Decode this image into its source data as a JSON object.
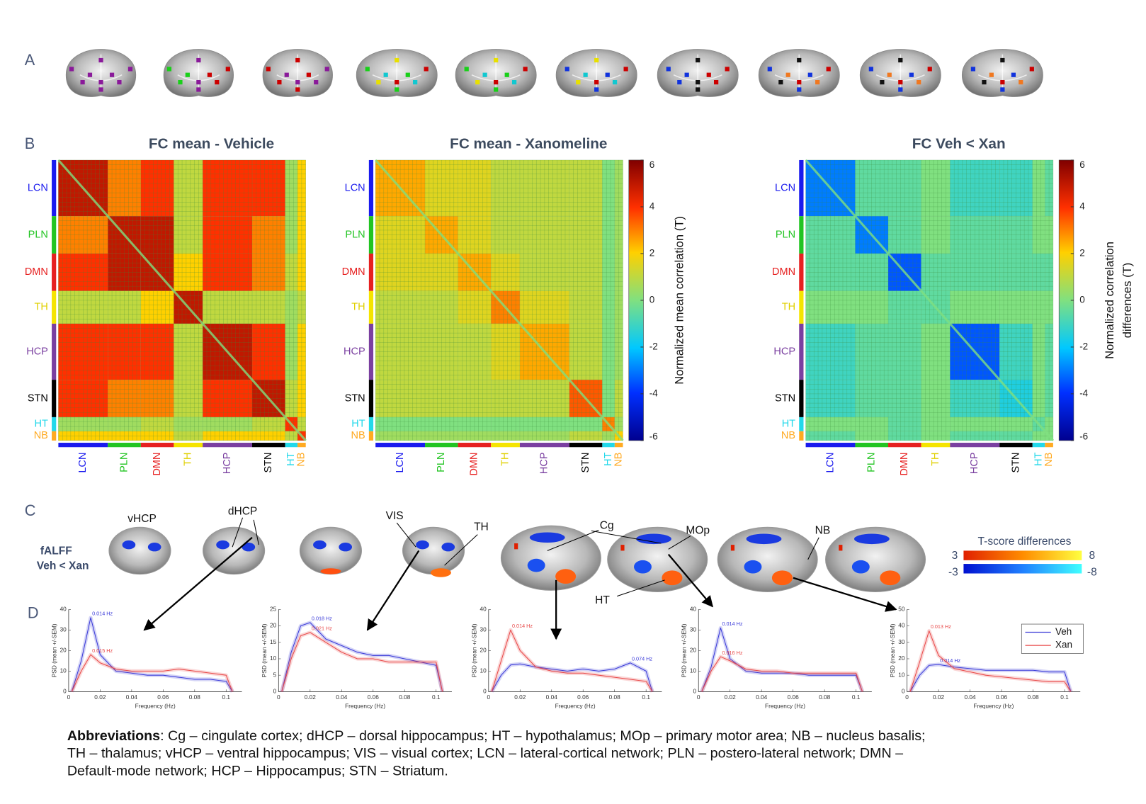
{
  "panel_labels": [
    "A",
    "B",
    "C",
    "D"
  ],
  "networks": [
    "LCN",
    "PLN",
    "DMN",
    "TH",
    "HCP",
    "STN",
    "HT",
    "NB"
  ],
  "network_colors": [
    "#1a1aee",
    "#22c422",
    "#e62020",
    "#f5e400",
    "#7a3fa0",
    "#000000",
    "#22d8ea",
    "#ffaa22"
  ],
  "chart_data": [
    {
      "type": "heatmap",
      "title": "FC mean - Vehicle",
      "zlim": [
        -6,
        6
      ],
      "matrix": [
        [
          5,
          3,
          4,
          1,
          4,
          4,
          0.5,
          2
        ],
        [
          3,
          5,
          5,
          1,
          4,
          3,
          0.5,
          2
        ],
        [
          4,
          5,
          5,
          2,
          4,
          3,
          1,
          2
        ],
        [
          1,
          1,
          2,
          5,
          1,
          1,
          0.5,
          1
        ],
        [
          4,
          4,
          4,
          1,
          5,
          4,
          0.5,
          2
        ],
        [
          4,
          3,
          3,
          1,
          4,
          5,
          1,
          2
        ],
        [
          0.5,
          0.5,
          1,
          0.5,
          0.5,
          1,
          4,
          1
        ],
        [
          2,
          2,
          2,
          1,
          2,
          2,
          1,
          4
        ]
      ]
    },
    {
      "type": "heatmap",
      "title": "FC mean - Xanomeline",
      "zlim": [
        -6,
        6
      ],
      "zticks": [
        6,
        4,
        2,
        0,
        -2,
        -4,
        -6
      ],
      "colorbar_label": "Normalized mean correlation (T)",
      "matrix": [
        [
          2.5,
          1.5,
          1.5,
          1,
          1,
          1,
          0,
          0.5
        ],
        [
          1.5,
          2.5,
          1.5,
          1,
          1,
          1,
          0,
          0.5
        ],
        [
          1.5,
          1.5,
          2.5,
          1.5,
          1,
          1,
          0,
          0.5
        ],
        [
          1,
          1,
          1.5,
          3,
          1.5,
          1,
          0,
          0.5
        ],
        [
          1,
          1,
          1,
          1.5,
          2.5,
          1,
          0,
          0.5
        ],
        [
          1,
          1,
          1,
          1,
          1,
          3.5,
          0,
          1
        ],
        [
          0,
          0,
          0,
          0,
          0,
          0,
          3,
          0.5
        ],
        [
          0.5,
          0.5,
          0.5,
          0.5,
          0.5,
          1,
          0.5,
          2
        ]
      ]
    },
    {
      "type": "heatmap",
      "title": "FC  Veh < Xan",
      "zlim": [
        -6,
        6
      ],
      "zticks": [
        6,
        4,
        2,
        0,
        -2,
        -4,
        -6
      ],
      "colorbar_label": [
        "Normalized correlation",
        "differences (T)"
      ],
      "matrix": [
        [
          -3,
          -0.5,
          -0.5,
          0,
          -1,
          -1,
          0,
          -0.5
        ],
        [
          -0.5,
          -3,
          -0.5,
          0,
          -0.5,
          -0.5,
          0,
          0
        ],
        [
          -0.5,
          -0.5,
          -3.5,
          -0.5,
          -0.5,
          -0.5,
          -0.5,
          -0.5
        ],
        [
          0,
          0,
          -0.5,
          -0.5,
          0,
          0,
          0,
          0
        ],
        [
          -1,
          -0.5,
          -0.5,
          0,
          -3.5,
          -1,
          0,
          -0.5
        ],
        [
          -1,
          -0.5,
          -0.5,
          0,
          -1,
          -1.5,
          0,
          -0.5
        ],
        [
          0,
          0,
          -0.5,
          0,
          0,
          0,
          -0.5,
          0
        ],
        [
          -0.5,
          0,
          -0.5,
          0,
          -0.5,
          -0.5,
          0,
          0
        ]
      ]
    },
    {
      "type": "line",
      "xlabel": "Frequency (Hz)",
      "ylabel": "PSD (mean +/-SEM)",
      "x": [
        0.002,
        0.008,
        0.014,
        0.02,
        0.03,
        0.04,
        0.05,
        0.06,
        0.07,
        0.08,
        0.09,
        0.1,
        0.104
      ],
      "xlim": [
        0,
        0.11
      ],
      "xticks": [
        0,
        0.02,
        0.04,
        0.06,
        0.08,
        0.1
      ],
      "ylim": [
        0,
        40
      ],
      "yticks": [
        0,
        10,
        20,
        30,
        40
      ],
      "series": [
        {
          "name": "Veh",
          "color": "#3a3ad8",
          "peak_label": "0.014 Hz",
          "values": [
            0,
            15,
            36,
            18,
            10,
            9,
            8,
            8,
            7,
            6,
            6,
            5,
            0
          ]
        },
        {
          "name": "Xan",
          "color": "#e84848",
          "peak_label": "0.015 Hz",
          "values": [
            0,
            10,
            18,
            14,
            11,
            10,
            10,
            10,
            11,
            10,
            9,
            8,
            0
          ]
        }
      ]
    },
    {
      "type": "line",
      "xlabel": "Frequency (Hz)",
      "ylabel": "PSD (mean +/-SEM)",
      "x": [
        0.002,
        0.008,
        0.014,
        0.02,
        0.03,
        0.04,
        0.05,
        0.06,
        0.07,
        0.08,
        0.09,
        0.1,
        0.104
      ],
      "xlim": [
        0,
        0.11
      ],
      "xticks": [
        0,
        0.02,
        0.04,
        0.06,
        0.08,
        0.1
      ],
      "ylim": [
        0,
        25
      ],
      "yticks": [
        0,
        5,
        10,
        15,
        20,
        25
      ],
      "series": [
        {
          "name": "Veh",
          "color": "#3a3ad8",
          "peak_label": "0.018 Hz",
          "values": [
            0,
            12,
            20,
            21,
            16,
            14,
            12,
            11,
            11,
            10,
            9,
            8,
            0
          ]
        },
        {
          "name": "Xan",
          "color": "#e84848",
          "peak_label": "0.021 Hz",
          "values": [
            0,
            10,
            17,
            18,
            15,
            12,
            10,
            10,
            9,
            9,
            9,
            9,
            0
          ]
        }
      ]
    },
    {
      "type": "line",
      "xlabel": "Frequency (Hz)",
      "ylabel": "PSD (mean +/-SEM)",
      "x": [
        0.002,
        0.008,
        0.014,
        0.02,
        0.03,
        0.04,
        0.05,
        0.06,
        0.07,
        0.08,
        0.09,
        0.1,
        0.104
      ],
      "xlim": [
        0,
        0.11
      ],
      "xticks": [
        0,
        0.02,
        0.04,
        0.06,
        0.08,
        0.1
      ],
      "ylim": [
        0,
        40
      ],
      "yticks": [
        0,
        10,
        20,
        30,
        40
      ],
      "series": [
        {
          "name": "Veh",
          "color": "#3a3ad8",
          "peak_label": "0.074 Hz",
          "values": [
            0,
            8,
            13,
            13.5,
            12,
            11,
            10,
            11,
            10,
            11,
            14,
            10,
            0
          ]
        },
        {
          "name": "Xan",
          "color": "#e84848",
          "peak_label": "0.014 Hz",
          "values": [
            0,
            15,
            30,
            20,
            12,
            10,
            9,
            9,
            8,
            7,
            6,
            5,
            0
          ]
        }
      ]
    },
    {
      "type": "line",
      "xlabel": "Frequency (Hz)",
      "ylabel": "PSD (mean +/-SEM)",
      "x": [
        0.002,
        0.008,
        0.014,
        0.02,
        0.03,
        0.04,
        0.05,
        0.06,
        0.07,
        0.08,
        0.09,
        0.1,
        0.104
      ],
      "xlim": [
        0,
        0.11
      ],
      "xticks": [
        0,
        0.02,
        0.04,
        0.06,
        0.08,
        0.1
      ],
      "ylim": [
        0,
        40
      ],
      "yticks": [
        0,
        10,
        20,
        30,
        40
      ],
      "series": [
        {
          "name": "Veh",
          "color": "#3a3ad8",
          "peak_label": "0.014 Hz",
          "values": [
            0,
            12,
            31,
            16,
            10,
            9,
            9,
            9,
            8,
            8,
            8,
            8,
            0
          ]
        },
        {
          "name": "Xan",
          "color": "#e84848",
          "peak_label": "0.016 Hz",
          "values": [
            0,
            10,
            17,
            15,
            11,
            10,
            10,
            9,
            9,
            9,
            9,
            9,
            0
          ]
        }
      ]
    },
    {
      "type": "line",
      "xlabel": "Frequency (Hz)",
      "ylabel": "PSD (mean +/-SEM)",
      "legend": "upper right",
      "x": [
        0.002,
        0.008,
        0.014,
        0.02,
        0.03,
        0.04,
        0.05,
        0.06,
        0.07,
        0.08,
        0.09,
        0.1,
        0.104
      ],
      "xlim": [
        0,
        0.11
      ],
      "xticks": [
        0,
        0.02,
        0.04,
        0.06,
        0.08,
        0.1
      ],
      "ylim": [
        0,
        50
      ],
      "yticks": [
        0,
        10,
        20,
        30,
        40,
        50
      ],
      "series": [
        {
          "name": "Veh",
          "color": "#3a3ad8",
          "peak_label": "0.014 Hz",
          "values": [
            0,
            10,
            16,
            16.5,
            15,
            14,
            13,
            13,
            13,
            13,
            12,
            12,
            0
          ]
        },
        {
          "name": "Xan",
          "color": "#e84848",
          "peak_label": "0.013 Hz",
          "values": [
            0,
            18,
            37,
            22,
            14,
            12,
            10,
            9,
            8,
            7,
            6,
            6,
            0
          ]
        }
      ]
    }
  ],
  "panel_c": {
    "measure": "fALFF",
    "contrast": "Veh < Xan",
    "regions": [
      "vHCP",
      "dHCP",
      "VIS",
      "TH",
      "Cg",
      "MOp",
      "NB",
      "HT"
    ],
    "colorbar_title": "T-score differences",
    "positive_range": [
      3,
      8
    ],
    "negative_range": [
      -3,
      -8
    ]
  },
  "abbreviations": {
    "heading": "Abbreviations",
    "lines": [
      ": Cg – cingulate cortex; dHCP – dorsal hippocampus; HT – hypothalamus; MOp – primary motor area; NB – nucleus basalis;",
      "TH – thalamus; vHCP – ventral hippocampus; VIS – visual cortex; LCN – lateral-cortical network; PLN – postero-lateral network; DMN –",
      "Default-mode network; HCP – Hippocampus; STN – Striatum."
    ]
  }
}
